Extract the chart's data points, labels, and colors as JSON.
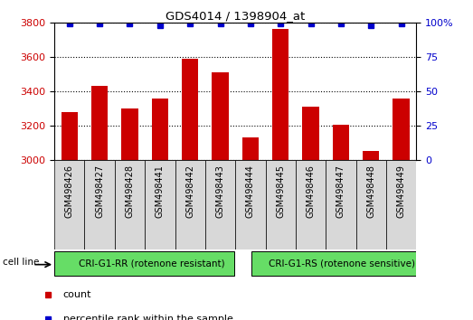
{
  "title": "GDS4014 / 1398904_at",
  "samples": [
    "GSM498426",
    "GSM498427",
    "GSM498428",
    "GSM498441",
    "GSM498442",
    "GSM498443",
    "GSM498444",
    "GSM498445",
    "GSM498446",
    "GSM498447",
    "GSM498448",
    "GSM498449"
  ],
  "counts": [
    3280,
    3430,
    3300,
    3355,
    3590,
    3510,
    3130,
    3760,
    3310,
    3205,
    3050,
    3355
  ],
  "percentile_ranks": [
    99,
    99,
    99,
    98,
    99,
    99,
    99,
    99,
    99,
    99,
    98,
    99
  ],
  "bar_color": "#cc0000",
  "dot_color": "#0000cc",
  "ylim_left": [
    3000,
    3800
  ],
  "ylim_right": [
    0,
    100
  ],
  "yticks_left": [
    3000,
    3200,
    3400,
    3600,
    3800
  ],
  "yticks_right": [
    0,
    25,
    50,
    75,
    100
  ],
  "group1_label": "CRI-G1-RR (rotenone resistant)",
  "group2_label": "CRI-G1-RS (rotenone sensitive)",
  "group1_count": 6,
  "group2_count": 6,
  "cell_line_label": "cell line",
  "legend_count_label": "count",
  "legend_percentile_label": "percentile rank within the sample",
  "bg_color": "#d8d8d8",
  "group_bar_color": "#66dd66",
  "tick_label_color_left": "#cc0000",
  "tick_label_color_right": "#0000cc"
}
